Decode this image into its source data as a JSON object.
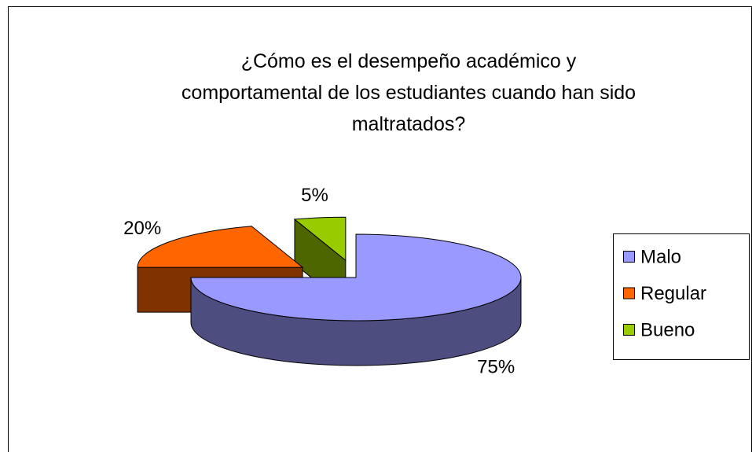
{
  "chart_data": {
    "type": "pie3d",
    "title": "¿Cómo es el desempeño académico y comportamental de los estudiantes cuando han sido maltratados?",
    "categories": [
      "Malo",
      "Regular",
      "Bueno"
    ],
    "values": [
      75,
      20,
      5
    ],
    "value_labels": [
      "75%",
      "20%",
      "5%"
    ],
    "colors": [
      "#9999ff",
      "#ff6600",
      "#99cc00"
    ],
    "legend": "right"
  }
}
